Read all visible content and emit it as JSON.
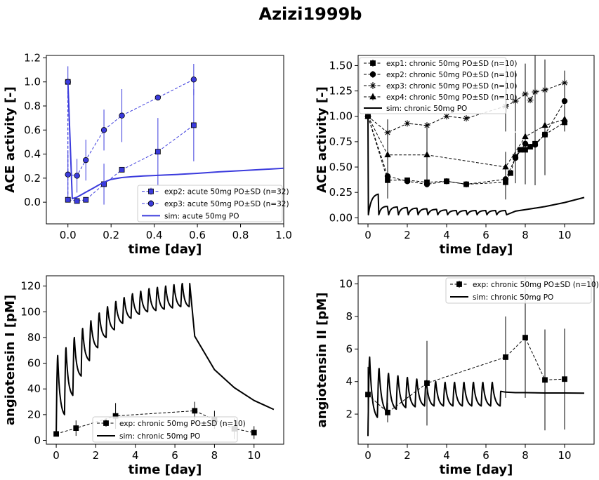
{
  "figure": {
    "title": "Azizi1999b"
  },
  "chart_data": [
    {
      "type": "line",
      "xlabel": "time [day]",
      "ylabel": "ACE activity [-]",
      "xlim": [
        -0.1,
        1.0
      ],
      "ylim": [
        -0.18,
        1.22
      ],
      "xticks": [
        0.0,
        0.2,
        0.4,
        0.6,
        0.8,
        1.0
      ],
      "xtick_labels": [
        "0.0",
        "0.2",
        "0.4",
        "0.6",
        "0.8",
        "1.0"
      ],
      "yticks": [
        0.0,
        0.2,
        0.4,
        0.6,
        0.8,
        1.0,
        1.2
      ],
      "ytick_labels": [
        "0.0",
        "0.2",
        "0.4",
        "0.6",
        "0.8",
        "1.0",
        "1.2"
      ],
      "legend_position": "lower-right",
      "series": [
        {
          "name": "exp2: acute 50mg PO±SD (n=32)",
          "kind": "errorbar",
          "marker": "s",
          "color": "#3b3bdd",
          "linestyle": "dashed",
          "x": [
            0.0,
            0.0,
            0.042,
            0.083,
            0.167,
            0.25,
            0.417,
            0.583
          ],
          "y": [
            1.0,
            0.02,
            0.01,
            0.02,
            0.15,
            0.27,
            0.42,
            0.64
          ],
          "yerr": [
            0.0,
            0.0,
            0.0,
            0.0,
            0.17,
            0.0,
            0.28,
            0.3
          ]
        },
        {
          "name": "exp3: acute 50mg PO±SD (n=32)",
          "kind": "errorbar",
          "marker": "o",
          "color": "#3b3bdd",
          "linestyle": "dashed",
          "x": [
            0.0,
            0.0,
            0.042,
            0.083,
            0.167,
            0.25,
            0.417,
            0.583
          ],
          "y": [
            1.0,
            0.23,
            0.22,
            0.35,
            0.6,
            0.72,
            0.87,
            1.02
          ],
          "yerr": [
            0.13,
            0.18,
            0.14,
            0.17,
            0.17,
            0.22,
            0.0,
            0.13
          ]
        },
        {
          "name": "sim: acute 50mg PO",
          "kind": "line",
          "color": "#3b3bdd",
          "linestyle": "solid",
          "x": [
            0.0,
            0.02,
            0.04,
            0.06,
            0.08,
            0.1,
            0.12,
            0.14,
            0.16,
            0.18,
            0.2,
            0.25,
            0.3,
            0.35,
            0.4,
            0.45,
            0.5,
            0.6,
            0.7,
            0.8,
            0.9,
            1.0
          ],
          "y": [
            1.0,
            0.03,
            0.04,
            0.06,
            0.08,
            0.1,
            0.12,
            0.14,
            0.16,
            0.175,
            0.19,
            0.205,
            0.212,
            0.218,
            0.222,
            0.226,
            0.23,
            0.24,
            0.252,
            0.262,
            0.272,
            0.282
          ]
        }
      ]
    },
    {
      "type": "line",
      "xlabel": "time [day]",
      "ylabel": "ACE activity [-]",
      "xlim": [
        -0.5,
        11.5
      ],
      "ylim": [
        -0.06,
        1.6
      ],
      "xticks": [
        0,
        2,
        4,
        6,
        8,
        10
      ],
      "xtick_labels": [
        "0",
        "2",
        "4",
        "6",
        "8",
        "10"
      ],
      "yticks": [
        0.0,
        0.25,
        0.5,
        0.75,
        1.0,
        1.25,
        1.5
      ],
      "ytick_labels": [
        "0.00",
        "0.25",
        "0.50",
        "0.75",
        "1.00",
        "1.25",
        "1.50"
      ],
      "legend_position": "upper-left",
      "series": [
        {
          "name": "exp1: chronic 50mg PO±SD (n=10)",
          "kind": "errorbar",
          "marker": "s",
          "color": "#000000",
          "linestyle": "dashed",
          "x": [
            0,
            1,
            2,
            3,
            4,
            5,
            7,
            7.25,
            7.5,
            7.75,
            8,
            8.25,
            8.5,
            9,
            10
          ],
          "y": [
            1.0,
            0.37,
            0.37,
            0.35,
            0.36,
            0.33,
            0.35,
            0.44,
            0.6,
            0.67,
            0.67,
            0.7,
            0.73,
            0.82,
            0.94
          ],
          "yerr": [
            0.0,
            0.07,
            0.0,
            0.0,
            0.0,
            0.0,
            0.0,
            0.0,
            0.0,
            0.0,
            0.0,
            0.0,
            0.0,
            0.0,
            0.0
          ]
        },
        {
          "name": "exp2: chronic 50mg PO±SD (n=10)",
          "kind": "errorbar",
          "marker": "o",
          "color": "#000000",
          "linestyle": "dashed",
          "x": [
            0,
            1,
            2,
            3,
            4,
            5,
            7,
            7.5,
            8,
            8.5,
            9,
            10
          ],
          "y": [
            1.0,
            0.41,
            0.36,
            0.33,
            0.36,
            0.33,
            0.38,
            0.59,
            0.73,
            0.72,
            0.82,
            1.15
          ],
          "yerr": [
            0.0,
            0.22,
            0.0,
            0.0,
            0.0,
            0.0,
            0.2,
            0.25,
            0.4,
            0.4,
            0.4,
            0.3
          ]
        },
        {
          "name": "exp3: chronic 50mg PO±SD (n=10)",
          "kind": "errorbar",
          "marker": "x",
          "color": "#000000",
          "linestyle": "dashed",
          "x": [
            0,
            1,
            2,
            3,
            4,
            5,
            7,
            7.5,
            8,
            8.25,
            8.5,
            9,
            10
          ],
          "y": [
            1.0,
            0.84,
            0.93,
            0.91,
            1.0,
            0.98,
            1.1,
            1.15,
            1.22,
            1.16,
            1.24,
            1.26,
            1.33
          ],
          "yerr": [
            0.0,
            0.13,
            0.0,
            0.0,
            0.0,
            0.0,
            0.25,
            0.3,
            0.3,
            0.0,
            0.4,
            0.3,
            0.0
          ]
        },
        {
          "name": "exp4: chronic 50mg PO±SD (n=10)",
          "kind": "errorbar",
          "marker": "^",
          "color": "#000000",
          "linestyle": "dashed",
          "x": [
            0,
            1,
            3,
            7,
            8,
            9,
            10
          ],
          "y": [
            1.0,
            0.62,
            0.62,
            0.5,
            0.8,
            0.91,
            0.97
          ],
          "yerr": [
            0.0,
            0.2,
            0.32,
            0.15,
            0.4,
            0.4,
            0.0
          ]
        },
        {
          "name": "sim: chronic 50mg PO",
          "kind": "line",
          "color": "#000000",
          "linestyle": "solid",
          "x": [
            0.0,
            0.02,
            0.08,
            0.15,
            0.3,
            0.5,
            0.55,
            1.0,
            7.0,
            7.5,
            8.0,
            9.0,
            10.0,
            11.0
          ],
          "y": [
            1.0,
            0.03,
            0.12,
            0.19,
            0.23,
            0.24,
            0.03,
            0.06,
            0.05,
            0.065,
            0.08,
            0.11,
            0.15,
            0.2
          ]
        }
      ]
    },
    {
      "type": "line",
      "xlabel": "time [day]",
      "ylabel": "angiotensin I [pM]",
      "xlim": [
        -0.5,
        11.5
      ],
      "ylim": [
        -3,
        128
      ],
      "xticks": [
        0,
        2,
        4,
        6,
        8,
        10
      ],
      "xtick_labels": [
        "0",
        "2",
        "4",
        "6",
        "8",
        "10"
      ],
      "yticks": [
        0,
        20,
        40,
        60,
        80,
        100,
        120
      ],
      "ytick_labels": [
        "0",
        "20",
        "40",
        "60",
        "80",
        "100",
        "120"
      ],
      "legend_position": "lower-center",
      "series": [
        {
          "name": "exp: chronic 50mg PO±SD (n=10)",
          "kind": "errorbar",
          "marker": "s",
          "color": "#000000",
          "linestyle": "dashed",
          "x": [
            0,
            1,
            3,
            7,
            8,
            9,
            10
          ],
          "y": [
            5,
            9.5,
            19,
            23,
            16,
            9,
            6
          ],
          "yerr": [
            0,
            6,
            10,
            7,
            7,
            8,
            5
          ]
        },
        {
          "name": "sim: chronic 50mg PO",
          "kind": "line",
          "color": "#000000",
          "linestyle": "solid",
          "trough_days": [
            0,
            1,
            2,
            3,
            4,
            5,
            6
          ],
          "peak_values": [
            66,
            72,
            80,
            87,
            93,
            99,
            104,
            108,
            111,
            114,
            116,
            118,
            119,
            120,
            121,
            122
          ],
          "trough_values": [
            5,
            20,
            35,
            50,
            62,
            72,
            80,
            86,
            91,
            95,
            98,
            100,
            101,
            102,
            103,
            104
          ],
          "x": [
            7.0,
            8.0,
            9.0,
            10.0,
            11.0
          ],
          "y": [
            81,
            55,
            41,
            31,
            24
          ]
        }
      ]
    },
    {
      "type": "line",
      "xlabel": "time [day]",
      "ylabel": "angiotensin II [pM]",
      "xlim": [
        -0.5,
        11.5
      ],
      "ylim": [
        0.15,
        10.5
      ],
      "xticks": [
        0,
        2,
        4,
        6,
        8,
        10
      ],
      "xtick_labels": [
        "0",
        "2",
        "4",
        "6",
        "8",
        "10"
      ],
      "yticks": [
        2,
        4,
        6,
        8,
        10
      ],
      "ytick_labels": [
        "2",
        "4",
        "6",
        "8",
        "10"
      ],
      "legend_position": "upper-right",
      "series": [
        {
          "name": "exp: chronic 50mg PO±SD (n=10)",
          "kind": "errorbar",
          "marker": "s",
          "color": "#000000",
          "linestyle": "dashed",
          "x": [
            0,
            1,
            3,
            7,
            8,
            9,
            10
          ],
          "y": [
            3.2,
            2.1,
            3.9,
            5.5,
            6.7,
            4.1,
            4.15
          ],
          "yerr": [
            1.7,
            0.6,
            2.6,
            2.5,
            3.7,
            3.1,
            3.1
          ]
        },
        {
          "name": "sim: chronic 50mg PO",
          "kind": "line",
          "color": "#000000",
          "linestyle": "solid",
          "peak_values": [
            5.5,
            4.8,
            4.5,
            4.35,
            4.25,
            4.15,
            4.05,
            4.0,
            3.95,
            3.95,
            3.95,
            3.95,
            3.95,
            3.95
          ],
          "trough_values": [
            0.65,
            1.8,
            2.15,
            2.3,
            2.4,
            2.45,
            2.5,
            2.5,
            2.5,
            2.5,
            2.5,
            2.5,
            2.5,
            2.5
          ],
          "x": [
            6.75,
            7.0,
            7.5,
            8.0,
            9.0,
            10.0,
            11.0
          ],
          "y": [
            3.4,
            3.35,
            3.32,
            3.32,
            3.3,
            3.3,
            3.29
          ]
        }
      ]
    }
  ]
}
